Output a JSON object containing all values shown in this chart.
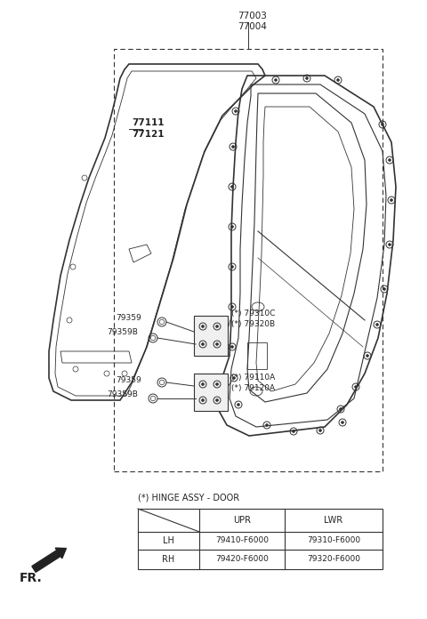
{
  "bg_color": "#ffffff",
  "line_color": "#333333",
  "text_color": "#222222",
  "gray_color": "#888888",
  "title1": "77003",
  "title2": "77004",
  "label_77111": "77111",
  "label_77121": "77121",
  "hinge_title": "(*) HINGE ASSY - DOOR",
  "table_col1": "UPR",
  "table_col2": "LWR",
  "table_row1_label": "LH",
  "table_row1_col1": "79410-F6000",
  "table_row1_col2": "79310-F6000",
  "table_row2_label": "RH",
  "table_row2_col1": "79420-F6000",
  "table_row2_col2": "79320-F6000",
  "fontsize_small": 6.5,
  "fontsize_medium": 7.5,
  "fontsize_large": 8.5
}
